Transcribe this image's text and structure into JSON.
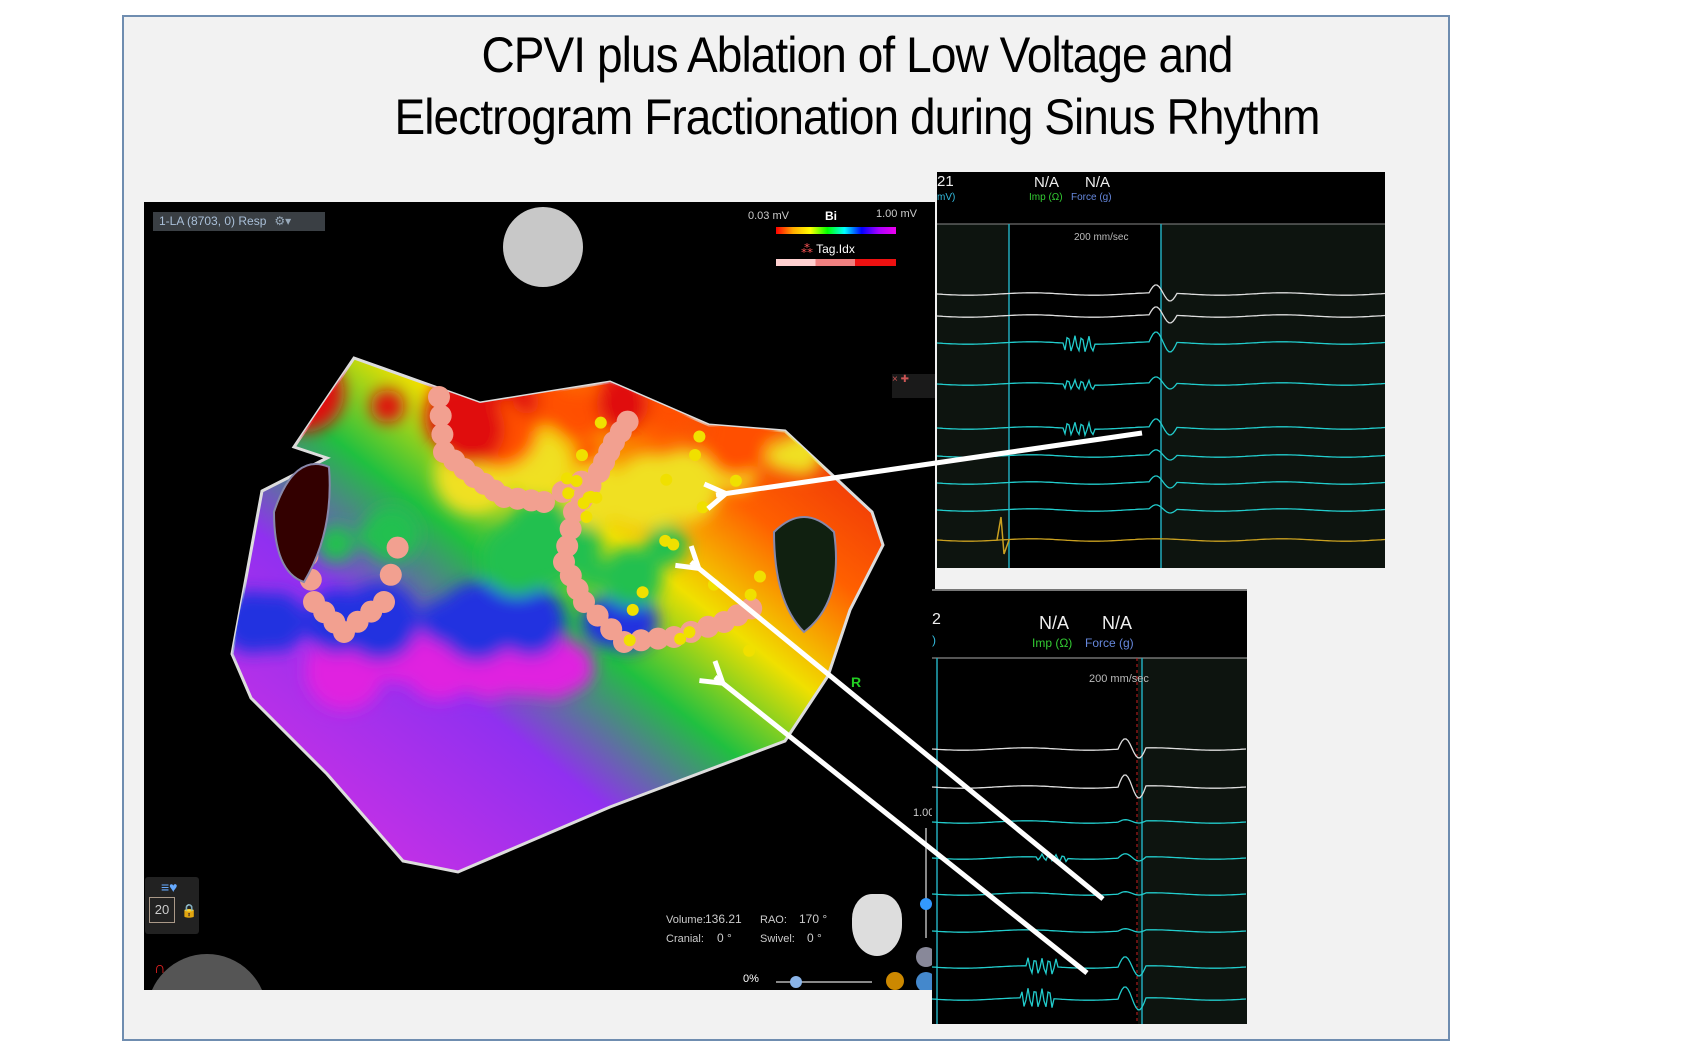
{
  "slide": {
    "title_line1": "CPVI plus Ablation of Low Voltage and",
    "title_line2": "Electrogram Fractionation during Sinus Rhythm"
  },
  "map_view": {
    "map_label": "1-LA (8703, 0) Resp",
    "legend": {
      "min": "0.03 mV",
      "mode": "Bi",
      "max": "1.00 mV",
      "tag_label": "Tag.Idx"
    },
    "colors": {
      "tag_light": "#ffd0d0",
      "tag_mid": "#f08080",
      "tag_dark": "#ee1111",
      "lesion": "#f2a090",
      "point": "#f0e000"
    },
    "side_label": "R",
    "widget_count": "20",
    "stats": {
      "volume_label": "Volume:",
      "volume_value": "136.21",
      "rao_label": "RAO:",
      "rao_value": "170 °",
      "cranial_label": "Cranial:",
      "cranial_value": "0 °",
      "swivel_label": "Swivel:",
      "swivel_value": "0 °"
    },
    "transparency": "0%",
    "scale_label": "1.00"
  },
  "egm_top": {
    "value_left": "21",
    "unit_left": "mV)",
    "imp_value": "N/A",
    "imp_label": "Imp (Ω)",
    "force_value": "N/A",
    "force_label": "Force (g)",
    "speed": "200 mm/sec"
  },
  "egm_bottom": {
    "value_left": "2",
    "unit_left": ")",
    "imp_value": "N/A",
    "imp_label": "Imp (Ω)",
    "force_value": "N/A",
    "force_label": "Force (g)",
    "speed": "200 mm/sec"
  }
}
